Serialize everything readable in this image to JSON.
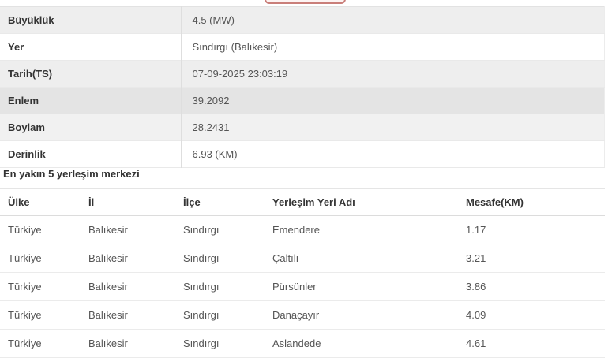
{
  "colors": {
    "accent_red_border": "#c97e79",
    "accent_red_fill": "#fdf3f2",
    "stripe_gray": "#eeeeee",
    "highlight_gray": "#e4e4e4",
    "border_gray": "#e2e2e2",
    "label_text": "#333333",
    "value_text": "#555555"
  },
  "detail_table": {
    "rows": [
      {
        "label": "Büyüklük",
        "value": "4.5 (MW)"
      },
      {
        "label": "Yer",
        "value": "Sındırgı (Balıkesir)"
      },
      {
        "label": "Tarih(TS)",
        "value": "07-09-2025 23:03:19"
      },
      {
        "label": "Enlem",
        "value": "39.2092"
      },
      {
        "label": "Boylam",
        "value": "28.2431"
      },
      {
        "label": "Derinlik",
        "value": "6.93 (KM)"
      }
    ]
  },
  "nearest_section": {
    "title": "En yakın 5 yerleşim merkezi",
    "columns": [
      "Ülke",
      "İl",
      "İlçe",
      "Yerleşim Yeri Adı",
      "Mesafe(KM)"
    ],
    "rows": [
      [
        "Türkiye",
        "Balıkesir",
        "Sındırgı",
        "Emendere",
        "1.17"
      ],
      [
        "Türkiye",
        "Balıkesir",
        "Sındırgı",
        "Çaltılı",
        "3.21"
      ],
      [
        "Türkiye",
        "Balıkesir",
        "Sındırgı",
        "Pürsünler",
        "3.86"
      ],
      [
        "Türkiye",
        "Balıkesir",
        "Sındırgı",
        "Danaçayır",
        "4.09"
      ],
      [
        "Türkiye",
        "Balıkesir",
        "Sındırgı",
        "Aslandede",
        "4.61"
      ]
    ]
  }
}
